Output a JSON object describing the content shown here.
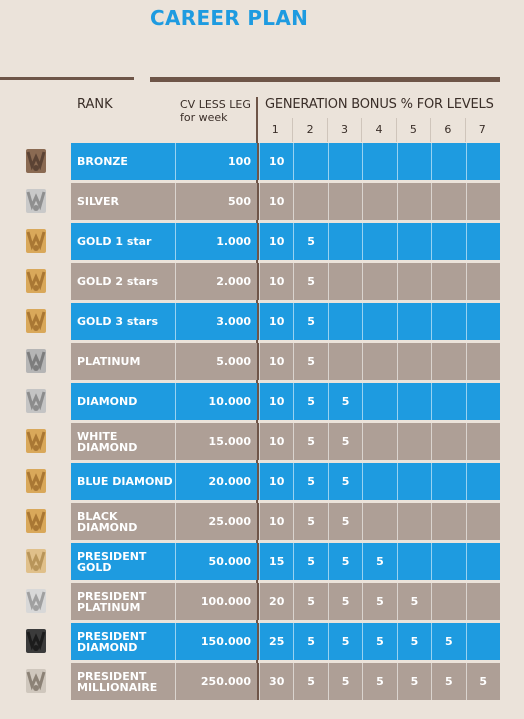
{
  "title": "CAREER PLAN",
  "headers": {
    "rank": "RANK",
    "cv_line1": "CV LESS LEG",
    "cv_line2": "for week",
    "generation": "GENERATION BONUS % FOR LEVELS",
    "levels": [
      "1",
      "2",
      "3",
      "4",
      "5",
      "6",
      "7"
    ]
  },
  "colors": {
    "blue": "#1e9be0",
    "taupe": "#ae9f96",
    "rule": "#6e5548",
    "title": "#1e9be0"
  },
  "ranks": [
    {
      "name": "BRONZE",
      "cv": "100",
      "bonus": [
        "10",
        "",
        "",
        "",
        "",
        "",
        ""
      ],
      "style": "blue",
      "medal": "bronze-medal-icon"
    },
    {
      "name": "SILVER",
      "cv": "500",
      "bonus": [
        "10",
        "",
        "",
        "",
        "",
        "",
        ""
      ],
      "style": "brown",
      "medal": "silver-medal-icon"
    },
    {
      "name": "GOLD 1 star",
      "cv": "1.000",
      "bonus": [
        "10",
        "5",
        "",
        "",
        "",
        "",
        ""
      ],
      "style": "blue",
      "medal": "gold-1-star-medal-icon"
    },
    {
      "name": "GOLD 2 stars",
      "cv": "2.000",
      "bonus": [
        "10",
        "5",
        "",
        "",
        "",
        "",
        ""
      ],
      "style": "brown",
      "medal": "gold-2-stars-medal-icon"
    },
    {
      "name": "GOLD 3 stars",
      "cv": "3.000",
      "bonus": [
        "10",
        "5",
        "",
        "",
        "",
        "",
        ""
      ],
      "style": "blue",
      "medal": "gold-3-stars-medal-icon"
    },
    {
      "name": "PLATINUM",
      "cv": "5.000",
      "bonus": [
        "10",
        "5",
        "",
        "",
        "",
        "",
        ""
      ],
      "style": "brown",
      "medal": "platinum-medal-icon"
    },
    {
      "name": "DIAMOND",
      "cv": "10.000",
      "bonus": [
        "10",
        "5",
        "5",
        "",
        "",
        "",
        ""
      ],
      "style": "blue",
      "medal": "diamond-medal-icon"
    },
    {
      "name": "WHITE DIAMOND",
      "cv": "15.000",
      "bonus": [
        "10",
        "5",
        "5",
        "",
        "",
        "",
        ""
      ],
      "style": "brown",
      "medal": "white-diamond-medal-icon"
    },
    {
      "name": "BLUE DIAMOND",
      "cv": "20.000",
      "bonus": [
        "10",
        "5",
        "5",
        "",
        "",
        "",
        ""
      ],
      "style": "blue",
      "medal": "blue-diamond-medal-icon"
    },
    {
      "name": "BLACK DIAMOND",
      "cv": "25.000",
      "bonus": [
        "10",
        "5",
        "5",
        "",
        "",
        "",
        ""
      ],
      "style": "brown",
      "medal": "black-diamond-medal-icon"
    },
    {
      "name": "PRESIDENT GOLD",
      "cv": "50.000",
      "bonus": [
        "15",
        "5",
        "5",
        "5",
        "",
        "",
        ""
      ],
      "style": "blue",
      "medal": "president-gold-medal-icon"
    },
    {
      "name": "PRESIDENT PLATINUM",
      "cv": "100.000",
      "bonus": [
        "20",
        "5",
        "5",
        "5",
        "5",
        "",
        ""
      ],
      "style": "brown",
      "medal": "president-platinum-medal-icon"
    },
    {
      "name": "PRESIDENT DIAMOND",
      "cv": "150.000",
      "bonus": [
        "25",
        "5",
        "5",
        "5",
        "5",
        "5",
        ""
      ],
      "style": "blue",
      "medal": "president-diamond-medal-icon"
    },
    {
      "name": "PRESIDENT MILLIONAIRE",
      "cv": "250.000",
      "bonus": [
        "30",
        "5",
        "5",
        "5",
        "5",
        "5",
        "5"
      ],
      "style": "brown",
      "medal": "president-millionaire-medal-icon"
    }
  ]
}
